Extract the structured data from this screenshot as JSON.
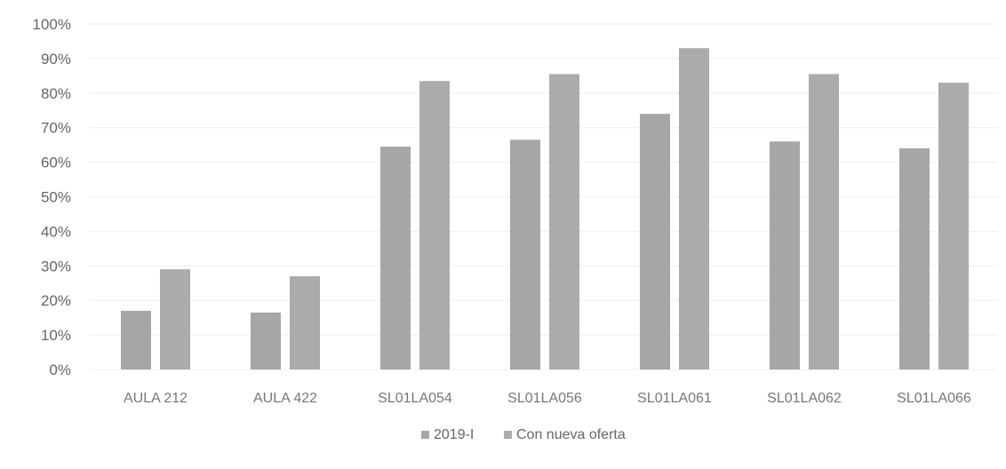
{
  "chart_data": {
    "type": "bar",
    "categories": [
      "AULA 212",
      "AULA 422",
      "SL01LA054",
      "SL01LA056",
      "SL01LA061",
      "SL01LA062",
      "SL01LA066"
    ],
    "series": [
      {
        "name": "2019-I",
        "values": [
          0.17,
          0.165,
          0.645,
          0.665,
          0.74,
          0.66,
          0.64
        ],
        "color": "#a6a6a6"
      },
      {
        "name": "Con nueva oferta",
        "values": [
          0.29,
          0.27,
          0.835,
          0.855,
          0.93,
          0.855,
          0.83
        ],
        "color": "#ababab"
      }
    ],
    "ylim": [
      0,
      1
    ],
    "yticks": [
      "0%",
      "10%",
      "20%",
      "30%",
      "40%",
      "50%",
      "60%",
      "70%",
      "80%",
      "90%",
      "100%"
    ],
    "grid": true,
    "legend_position": "bottom"
  }
}
